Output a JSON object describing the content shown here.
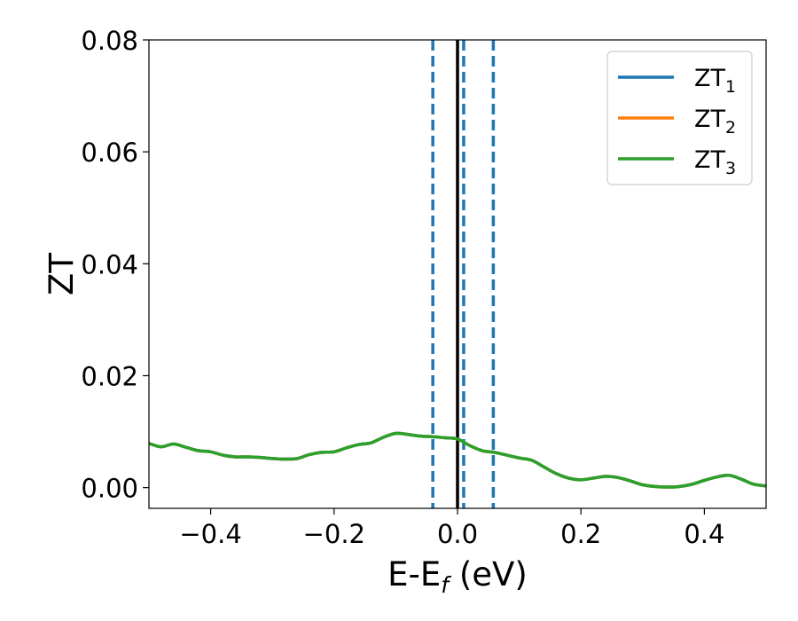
{
  "chart_data": {
    "type": "line",
    "xlabel_main": "E-E",
    "xlabel_sub": "f",
    "xlabel_unit": " (eV)",
    "ylabel": "ZT",
    "xlim": [
      -0.5,
      0.5
    ],
    "ylim": [
      -0.0037,
      0.08
    ],
    "grid": false,
    "legend_position": "top-right",
    "x_ticks": [
      -0.4,
      -0.2,
      0.0,
      0.2,
      0.4
    ],
    "x_tick_labels": [
      "−0.4",
      "−0.2",
      "0.0",
      "0.2",
      "0.4"
    ],
    "y_ticks": [
      0.0,
      0.02,
      0.04,
      0.06,
      0.08
    ],
    "y_tick_labels": [
      "0.00",
      "0.02",
      "0.04",
      "0.06",
      "0.08"
    ],
    "vertical_lines": [
      {
        "x": -0.04,
        "style": "dashed",
        "color": "#1f77b4"
      },
      {
        "x": 0.01,
        "style": "dashed",
        "color": "#1f77b4"
      },
      {
        "x": 0.058,
        "style": "dashed",
        "color": "#1f77b4"
      },
      {
        "x": 0.0,
        "style": "solid",
        "color": "#000000"
      }
    ],
    "series": [
      {
        "name_main": "ZT",
        "name_sub": "1",
        "color": "#1f77b4",
        "x": [
          -0.5,
          -0.48,
          -0.46,
          -0.44,
          -0.42,
          -0.4,
          -0.38,
          -0.36,
          -0.34,
          -0.32,
          -0.3,
          -0.28,
          -0.26,
          -0.24,
          -0.22,
          -0.2,
          -0.18,
          -0.16,
          -0.14,
          -0.12,
          -0.1,
          -0.08,
          -0.06,
          -0.04,
          -0.02,
          0.0,
          0.02,
          0.04,
          0.06,
          0.08,
          0.1,
          0.12,
          0.14,
          0.16,
          0.18,
          0.2,
          0.22,
          0.24,
          0.26,
          0.28,
          0.3,
          0.32,
          0.34,
          0.36,
          0.38,
          0.4,
          0.42,
          0.44,
          0.46,
          0.48,
          0.5
        ],
        "y": [
          0.0079,
          0.0073,
          0.0078,
          0.0072,
          0.0066,
          0.0064,
          0.0058,
          0.0055,
          0.0055,
          0.0054,
          0.0052,
          0.0051,
          0.0052,
          0.0059,
          0.0063,
          0.0064,
          0.0071,
          0.0077,
          0.008,
          0.009,
          0.0097,
          0.0095,
          0.0092,
          0.0091,
          0.0089,
          0.0087,
          0.0075,
          0.0066,
          0.0063,
          0.0058,
          0.0053,
          0.0049,
          0.0037,
          0.0025,
          0.0017,
          0.0014,
          0.0017,
          0.002,
          0.0018,
          0.0012,
          0.0005,
          0.0002,
          0.0001,
          0.0002,
          0.0006,
          0.0013,
          0.0019,
          0.0022,
          0.0015,
          0.0006,
          0.0003
        ]
      },
      {
        "name_main": "ZT",
        "name_sub": "2",
        "color": "#ff7f0e",
        "x": [
          -0.5,
          -0.48,
          -0.46,
          -0.44,
          -0.42,
          -0.4,
          -0.38,
          -0.36,
          -0.34,
          -0.32,
          -0.3,
          -0.28,
          -0.26,
          -0.24,
          -0.22,
          -0.2,
          -0.18,
          -0.16,
          -0.14,
          -0.12,
          -0.1,
          -0.08,
          -0.06,
          -0.04,
          -0.02,
          0.0,
          0.02,
          0.04,
          0.06,
          0.08,
          0.1,
          0.12,
          0.14,
          0.16,
          0.18,
          0.2,
          0.22,
          0.24,
          0.26,
          0.28,
          0.3,
          0.32,
          0.34,
          0.36,
          0.38,
          0.4,
          0.42,
          0.44,
          0.46,
          0.48,
          0.5
        ],
        "y": [
          0.0079,
          0.0073,
          0.0078,
          0.0072,
          0.0066,
          0.0064,
          0.0058,
          0.0055,
          0.0055,
          0.0054,
          0.0052,
          0.0051,
          0.0052,
          0.0059,
          0.0063,
          0.0064,
          0.0071,
          0.0077,
          0.008,
          0.009,
          0.0097,
          0.0095,
          0.0092,
          0.0091,
          0.0089,
          0.0087,
          0.0075,
          0.0066,
          0.0063,
          0.0058,
          0.0053,
          0.0049,
          0.0037,
          0.0025,
          0.0017,
          0.0014,
          0.0017,
          0.002,
          0.0018,
          0.0012,
          0.0005,
          0.0002,
          0.0001,
          0.0002,
          0.0006,
          0.0013,
          0.0019,
          0.0022,
          0.0015,
          0.0006,
          0.0003
        ]
      },
      {
        "name_main": "ZT",
        "name_sub": "3",
        "color": "#2ca02c",
        "x": [
          -0.5,
          -0.48,
          -0.46,
          -0.44,
          -0.42,
          -0.4,
          -0.38,
          -0.36,
          -0.34,
          -0.32,
          -0.3,
          -0.28,
          -0.26,
          -0.24,
          -0.22,
          -0.2,
          -0.18,
          -0.16,
          -0.14,
          -0.12,
          -0.1,
          -0.08,
          -0.06,
          -0.04,
          -0.02,
          0.0,
          0.02,
          0.04,
          0.06,
          0.08,
          0.1,
          0.12,
          0.14,
          0.16,
          0.18,
          0.2,
          0.22,
          0.24,
          0.26,
          0.28,
          0.3,
          0.32,
          0.34,
          0.36,
          0.38,
          0.4,
          0.42,
          0.44,
          0.46,
          0.48,
          0.5
        ],
        "y": [
          0.0079,
          0.0073,
          0.0078,
          0.0072,
          0.0066,
          0.0064,
          0.0058,
          0.0055,
          0.0055,
          0.0054,
          0.0052,
          0.0051,
          0.0052,
          0.0059,
          0.0063,
          0.0064,
          0.0071,
          0.0077,
          0.008,
          0.009,
          0.0097,
          0.0095,
          0.0092,
          0.0091,
          0.0089,
          0.0087,
          0.0075,
          0.0066,
          0.0063,
          0.0058,
          0.0053,
          0.0049,
          0.0037,
          0.0025,
          0.0017,
          0.0014,
          0.0017,
          0.002,
          0.0018,
          0.0012,
          0.0005,
          0.0002,
          0.0001,
          0.0002,
          0.0006,
          0.0013,
          0.0019,
          0.0022,
          0.0015,
          0.0006,
          0.0003
        ]
      }
    ]
  }
}
